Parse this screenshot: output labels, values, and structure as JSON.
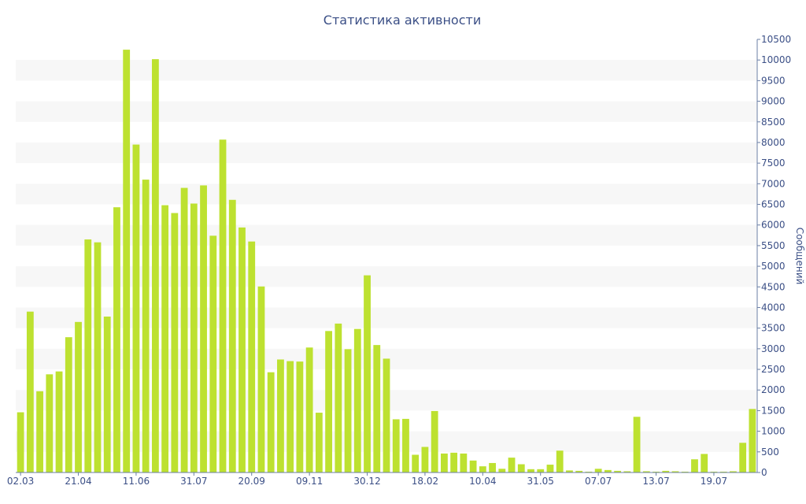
{
  "chart_data": {
    "type": "bar",
    "title": "Статистика активности",
    "xlabel": "",
    "ylabel": "Сообщений",
    "ylim": [
      0,
      10500
    ],
    "ytick_step": 500,
    "y_axis_position": "right",
    "grid": "alternating horizontal bands",
    "legend": "none",
    "bar_color": "#bde130",
    "x_tick_labels": [
      "02.03",
      "21.04",
      "11.06",
      "31.07",
      "20.09",
      "09.11",
      "30.12",
      "18.02",
      "10.04",
      "31.05",
      "07.07",
      "13.07",
      "19.07"
    ],
    "values": [
      1460,
      3900,
      1970,
      2380,
      2450,
      3280,
      3650,
      5650,
      5580,
      3780,
      6430,
      10250,
      7950,
      7100,
      10020,
      6480,
      6290,
      6900,
      6520,
      6960,
      5740,
      8070,
      6610,
      5940,
      5600,
      4510,
      2430,
      2740,
      2700,
      2690,
      3030,
      1450,
      3430,
      3610,
      2990,
      3480,
      4780,
      3090,
      2760,
      1290,
      1300,
      430,
      620,
      1490,
      460,
      480,
      460,
      290,
      150,
      230,
      90,
      360,
      200,
      80,
      80,
      190,
      530,
      50,
      40,
      20,
      90,
      60,
      40,
      30,
      1350,
      30,
      20,
      40,
      30,
      20,
      320,
      450,
      20,
      20,
      30,
      720,
      1540
    ]
  }
}
